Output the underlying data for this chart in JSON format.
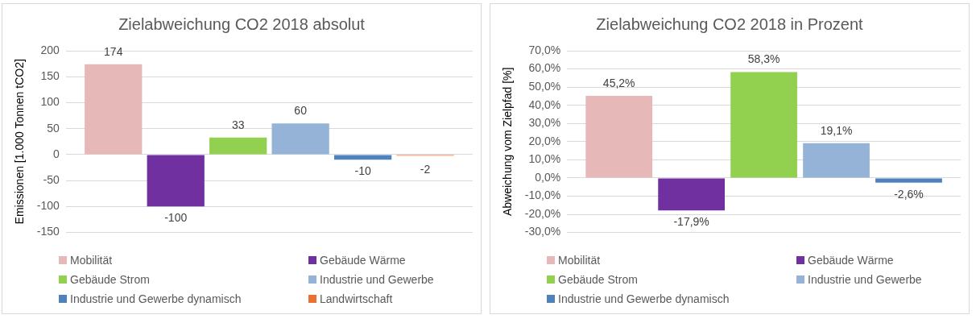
{
  "chart_data": [
    {
      "type": "bar",
      "title": "Zielabweichung CO2 2018 absolut",
      "ylabel": "Emissionen [1.000 Tonnen tCO2]",
      "categories": [
        null
      ],
      "series": [
        {
          "name": "Mobilität",
          "color": "#e6b8b7",
          "values": [
            174
          ]
        },
        {
          "name": "Gebäude Wärme",
          "color": "#7030a0",
          "values": [
            -100
          ]
        },
        {
          "name": "Gebäude Strom",
          "color": "#92d050",
          "values": [
            33
          ]
        },
        {
          "name": "Industrie und Gewerbe",
          "color": "#95b3d7",
          "values": [
            60
          ]
        },
        {
          "name": "Industrie und Gewerbe dynamisch",
          "color": "#4f81bd",
          "values": [
            -10
          ]
        },
        {
          "name": "Landwirtschaft",
          "color": "#e97132",
          "values": [
            -2
          ]
        }
      ],
      "ylim": [
        -150,
        200
      ],
      "yticks": [
        -150,
        -100,
        -50,
        0,
        50,
        100,
        150,
        200
      ],
      "grid": "y",
      "legend": "bottom",
      "data_labels": true,
      "tick_labels": "y"
    },
    {
      "type": "bar",
      "title": "Zielabweichung CO2 2018 in Prozent",
      "ylabel": "Abweichung vom Zielpfad [%]",
      "categories": [
        null
      ],
      "series": [
        {
          "name": "Mobilität",
          "color": "#e6b8b7",
          "values": [
            45.2
          ],
          "value_labels": [
            "45,2%"
          ]
        },
        {
          "name": "Gebäude Wärme",
          "color": "#7030a0",
          "values": [
            -17.9
          ],
          "value_labels": [
            "-17,9%"
          ]
        },
        {
          "name": "Gebäude Strom",
          "color": "#92d050",
          "values": [
            58.3
          ],
          "value_labels": [
            "58,3%"
          ]
        },
        {
          "name": "Industrie und Gewerbe",
          "color": "#95b3d7",
          "values": [
            19.1
          ],
          "value_labels": [
            "19,1%"
          ]
        },
        {
          "name": "Industrie und Gewerbe dynamisch",
          "color": "#4f81bd",
          "values": [
            -2.6
          ],
          "value_labels": [
            "-2,6%"
          ]
        }
      ],
      "ylim": [
        -30,
        70
      ],
      "yticks": [
        {
          "value": -30,
          "label": "-30,0%"
        },
        {
          "value": -20,
          "label": "-20,0%"
        },
        {
          "value": -10,
          "label": "-10,0%"
        },
        {
          "value": 0,
          "label": "0,0%"
        },
        {
          "value": 10,
          "label": "10,0%"
        },
        {
          "value": 20,
          "label": "20,0%"
        },
        {
          "value": 30,
          "label": "30,0%"
        },
        {
          "value": 40,
          "label": "40,0%"
        },
        {
          "value": 50,
          "label": "50,0%"
        },
        {
          "value": 60,
          "label": "60,0%"
        },
        {
          "value": 70,
          "label": "70,0%"
        }
      ],
      "grid": "y",
      "legend": "bottom",
      "tick_labels": "y"
    }
  ]
}
